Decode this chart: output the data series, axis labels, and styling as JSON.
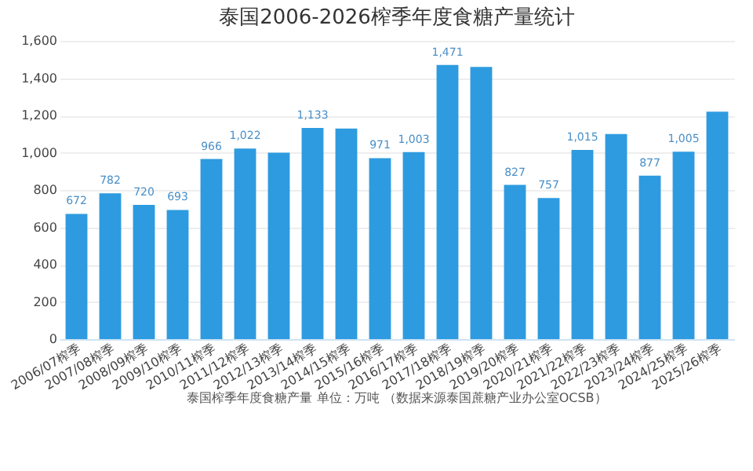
{
  "chart_data": {
    "type": "bar",
    "title": "泰国2006-2026榨季年度食糖产量统计",
    "categories": [
      "2006/07榨季",
      "2007/08榨季",
      "2008/09榨季",
      "2009/10榨季",
      "2010/11榨季",
      "2011/12榨季",
      "2012/13榨季",
      "2013/14榨季",
      "2014/15榨季",
      "2015/16榨季",
      "2016/17榨季",
      "2017/18榨季",
      "2018/19榨季",
      "2019/20榨季",
      "2020/21榨季",
      "2021/22榨季",
      "2022/23榨季",
      "2023/24榨季",
      "2024/25榨季",
      "2025/26榨季"
    ],
    "values": [
      672,
      782,
      720,
      693,
      966,
      1022,
      1000,
      1133,
      1130,
      971,
      1003,
      1471,
      1460,
      827,
      757,
      1015,
      1100,
      877,
      1005,
      1220
    ],
    "value_labels": [
      "672",
      "782",
      "720",
      "693",
      "966",
      "1,022",
      null,
      "1,133",
      null,
      "971",
      "1,003",
      "1,471",
      null,
      "827",
      "757",
      "1,015",
      null,
      "877",
      "1,005",
      null
    ],
    "color": "#2e9be0",
    "ylim": [
      0,
      1600
    ],
    "yticks": [
      0,
      200,
      400,
      600,
      800,
      {
        "value": 1000,
        "label": "1,000"
      },
      {
        "value": 1200,
        "label": "1,200"
      },
      {
        "value": 1400,
        "label": "1,400"
      },
      {
        "value": 1600,
        "label": "1,600"
      }
    ],
    "grid": "y",
    "annotations": [
      "泰国榨季年度食糖产量  单位：万吨  （数据来源泰国蔗糖产业办公室OCSB）"
    ]
  }
}
